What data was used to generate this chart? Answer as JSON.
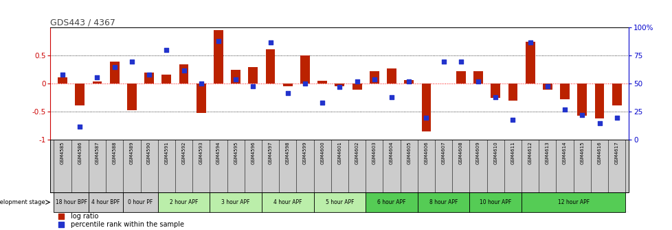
{
  "title": "GDS443 / 4367",
  "samples": [
    "GSM4585",
    "GSM4586",
    "GSM4587",
    "GSM4588",
    "GSM4589",
    "GSM4590",
    "GSM4591",
    "GSM4592",
    "GSM4593",
    "GSM4594",
    "GSM4595",
    "GSM4596",
    "GSM4597",
    "GSM4598",
    "GSM4599",
    "GSM4600",
    "GSM4601",
    "GSM4602",
    "GSM4603",
    "GSM4604",
    "GSM4605",
    "GSM4606",
    "GSM4607",
    "GSM4608",
    "GSM4609",
    "GSM4610",
    "GSM4611",
    "GSM4612",
    "GSM4613",
    "GSM4614",
    "GSM4615",
    "GSM4616",
    "GSM4617"
  ],
  "log_ratio": [
    0.12,
    -0.38,
    0.04,
    0.4,
    -0.47,
    0.2,
    0.16,
    0.35,
    -0.52,
    0.95,
    0.25,
    0.3,
    0.62,
    -0.05,
    0.5,
    0.05,
    -0.04,
    -0.1,
    0.22,
    0.27,
    0.07,
    -0.85,
    0.01,
    0.22,
    0.22,
    -0.25,
    -0.3,
    0.75,
    -0.1,
    -0.28,
    -0.57,
    -0.62,
    -0.38
  ],
  "percentile": [
    58,
    12,
    56,
    65,
    70,
    58,
    80,
    62,
    50,
    88,
    54,
    48,
    87,
    42,
    50,
    33,
    47,
    52,
    54,
    38,
    52,
    20,
    70,
    70,
    52,
    38,
    18,
    87,
    48,
    27,
    22,
    15,
    20
  ],
  "stages": [
    {
      "label": "18 hour BPF",
      "start": 0,
      "end": 2,
      "color": "#cccccc"
    },
    {
      "label": "4 hour BPF",
      "start": 2,
      "end": 4,
      "color": "#cccccc"
    },
    {
      "label": "0 hour PF",
      "start": 4,
      "end": 6,
      "color": "#cccccc"
    },
    {
      "label": "2 hour APF",
      "start": 6,
      "end": 9,
      "color": "#bbeeaa"
    },
    {
      "label": "3 hour APF",
      "start": 9,
      "end": 12,
      "color": "#bbeeaa"
    },
    {
      "label": "4 hour APF",
      "start": 12,
      "end": 15,
      "color": "#bbeeaa"
    },
    {
      "label": "5 hour APF",
      "start": 15,
      "end": 18,
      "color": "#bbeeaa"
    },
    {
      "label": "6 hour APF",
      "start": 18,
      "end": 21,
      "color": "#55cc55"
    },
    {
      "label": "8 hour APF",
      "start": 21,
      "end": 24,
      "color": "#55cc55"
    },
    {
      "label": "10 hour APF",
      "start": 24,
      "end": 27,
      "color": "#55cc55"
    },
    {
      "label": "12 hour APF",
      "start": 27,
      "end": 33,
      "color": "#55cc55"
    }
  ],
  "bar_color": "#bb2200",
  "dot_color": "#2233cc",
  "left_ylim": [
    -1.0,
    1.0
  ],
  "right_ylim": [
    0,
    100
  ],
  "left_yticks": [
    -1.0,
    -0.5,
    0.0,
    0.5
  ],
  "left_yticklabels": [
    "-1",
    "-0.5",
    "0",
    "0.5"
  ],
  "right_yticks": [
    0,
    25,
    50,
    75,
    100
  ],
  "right_yticklabels": [
    "0",
    "25",
    "50",
    "75",
    "100%"
  ],
  "legend_ratio_label": "log ratio",
  "legend_pct_label": "percentile rank within the sample",
  "dev_stage_label": "development stage"
}
